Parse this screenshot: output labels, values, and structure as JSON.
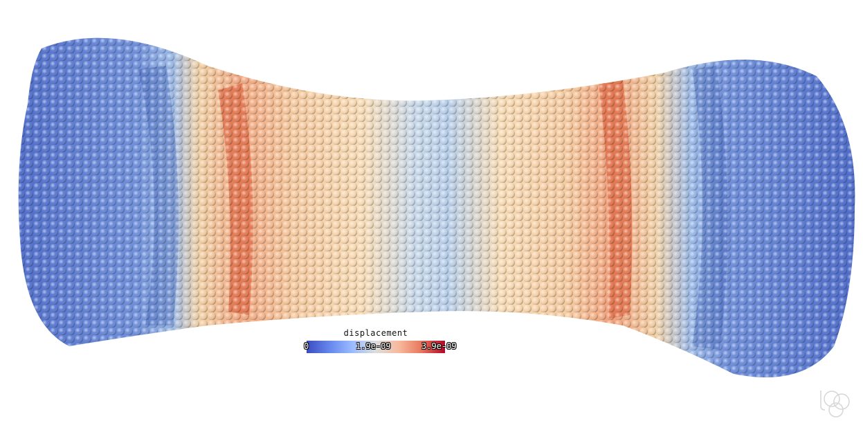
{
  "legend": {
    "title": "displacement",
    "tick_min": "0",
    "tick_mid": "1.9e-09",
    "tick_max": "3.9e-09",
    "colormap": [
      "#3b4cc0",
      "#6788ee",
      "#9abbff",
      "#dddddd",
      "#f7b89c",
      "#e8765c",
      "#b40426"
    ]
  },
  "logo": {
    "icon": "app-logo-icon"
  }
}
